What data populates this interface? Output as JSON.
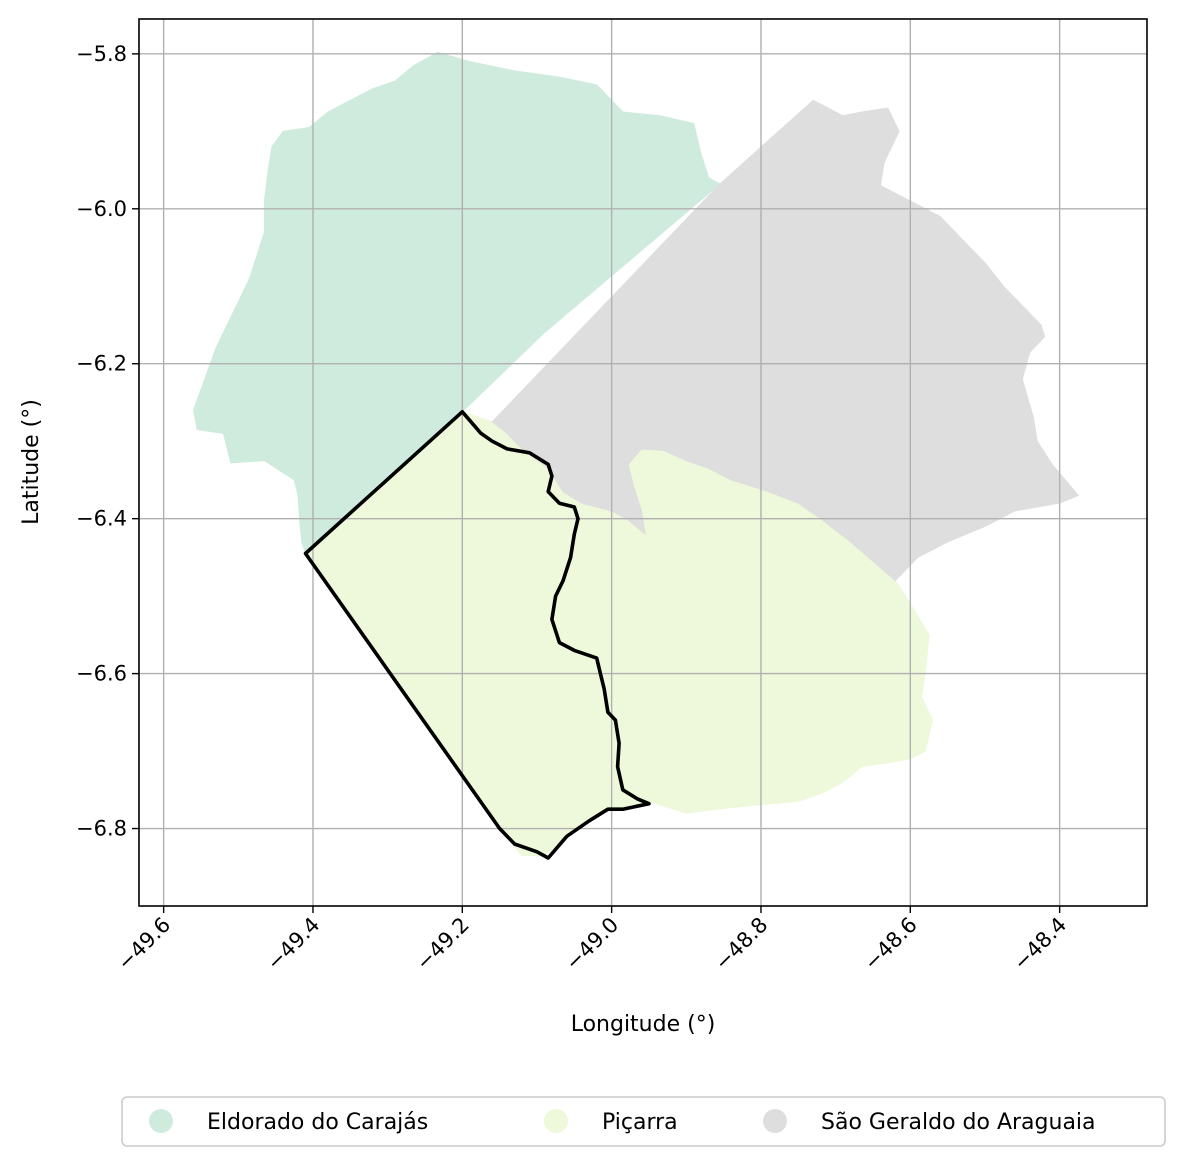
{
  "chart_data": {
    "type": "map",
    "title": "",
    "xlabel": "Longitude (°)",
    "ylabel": "Latitude (°)",
    "xlim": [
      -49.633,
      -48.283
    ],
    "ylim": [
      -6.9,
      -5.755
    ],
    "xticks": [
      -49.6,
      -49.4,
      -49.2,
      -49.0,
      -48.8,
      -48.6,
      -48.4
    ],
    "xtick_labels": [
      "−49.6",
      "−49.4",
      "−49.2",
      "−49.0",
      "−48.8",
      "−48.6",
      "−48.4"
    ],
    "yticks": [
      -5.8,
      -6.0,
      -6.2,
      -6.4,
      -6.6,
      -6.8
    ],
    "ytick_labels": [
      "−5.8",
      "−6.0",
      "−6.2",
      "−6.4",
      "−6.6",
      "−6.8"
    ],
    "grid": true,
    "legend_position": "bottom-center",
    "series": [
      {
        "name": "Eldorado do Carajás",
        "color": "#cfebde",
        "polygon": [
          [
            -49.233,
            -5.798
          ],
          [
            -49.19,
            -5.81
          ],
          [
            -49.13,
            -5.822
          ],
          [
            -49.07,
            -5.83
          ],
          [
            -49.02,
            -5.84
          ],
          [
            -48.985,
            -5.875
          ],
          [
            -48.935,
            -5.88
          ],
          [
            -48.89,
            -5.89
          ],
          [
            -48.88,
            -5.93
          ],
          [
            -48.87,
            -5.96
          ],
          [
            -48.855,
            -5.968
          ],
          [
            -49.09,
            -6.16
          ],
          [
            -49.2,
            -6.262
          ],
          [
            -49.41,
            -6.445
          ],
          [
            -49.415,
            -6.43
          ],
          [
            -49.418,
            -6.4
          ],
          [
            -49.42,
            -6.37
          ],
          [
            -49.425,
            -6.35
          ],
          [
            -49.465,
            -6.325
          ],
          [
            -49.51,
            -6.328
          ],
          [
            -49.52,
            -6.29
          ],
          [
            -49.555,
            -6.285
          ],
          [
            -49.56,
            -6.26
          ],
          [
            -49.545,
            -6.22
          ],
          [
            -49.53,
            -6.18
          ],
          [
            -49.515,
            -6.15
          ],
          [
            -49.5,
            -6.12
          ],
          [
            -49.485,
            -6.09
          ],
          [
            -49.475,
            -6.06
          ],
          [
            -49.465,
            -6.03
          ],
          [
            -49.465,
            -5.99
          ],
          [
            -49.46,
            -5.95
          ],
          [
            -49.455,
            -5.92
          ],
          [
            -49.44,
            -5.9
          ],
          [
            -49.405,
            -5.895
          ],
          [
            -49.38,
            -5.875
          ],
          [
            -49.35,
            -5.86
          ],
          [
            -49.32,
            -5.845
          ],
          [
            -49.29,
            -5.835
          ],
          [
            -49.265,
            -5.815
          ]
        ]
      },
      {
        "name": "Piçarra",
        "color": "#eef8da",
        "polygon": [
          [
            -49.2,
            -6.262
          ],
          [
            -49.16,
            -6.275
          ],
          [
            -49.14,
            -6.29
          ],
          [
            -49.12,
            -6.31
          ],
          [
            -49.085,
            -6.335
          ],
          [
            -49.065,
            -6.365
          ],
          [
            -49.04,
            -6.38
          ],
          [
            -49.0,
            -6.39
          ],
          [
            -48.98,
            -6.4
          ],
          [
            -48.955,
            -6.42
          ],
          [
            -48.96,
            -6.39
          ],
          [
            -48.97,
            -6.36
          ],
          [
            -48.978,
            -6.33
          ],
          [
            -48.96,
            -6.31
          ],
          [
            -48.93,
            -6.312
          ],
          [
            -48.9,
            -6.325
          ],
          [
            -48.87,
            -6.335
          ],
          [
            -48.84,
            -6.35
          ],
          [
            -48.79,
            -6.365
          ],
          [
            -48.75,
            -6.38
          ],
          [
            -48.72,
            -6.4
          ],
          [
            -48.68,
            -6.43
          ],
          [
            -48.65,
            -6.455
          ],
          [
            -48.62,
            -6.48
          ],
          [
            -48.6,
            -6.51
          ],
          [
            -48.575,
            -6.55
          ],
          [
            -48.58,
            -6.6
          ],
          [
            -48.585,
            -6.63
          ],
          [
            -48.57,
            -6.66
          ],
          [
            -48.58,
            -6.7
          ],
          [
            -48.6,
            -6.71
          ],
          [
            -48.63,
            -6.715
          ],
          [
            -48.665,
            -6.72
          ],
          [
            -48.69,
            -6.74
          ],
          [
            -48.72,
            -6.755
          ],
          [
            -48.75,
            -6.765
          ],
          [
            -48.81,
            -6.77
          ],
          [
            -48.86,
            -6.775
          ],
          [
            -48.9,
            -6.78
          ],
          [
            -48.95,
            -6.765
          ],
          [
            -48.975,
            -6.77
          ],
          [
            -49.0,
            -6.775
          ],
          [
            -49.03,
            -6.79
          ],
          [
            -49.06,
            -6.81
          ],
          [
            -49.09,
            -6.835
          ],
          [
            -49.12,
            -6.835
          ],
          [
            -49.15,
            -6.8
          ],
          [
            -49.41,
            -6.445
          ]
        ]
      },
      {
        "name": "São Geraldo do Araguaia",
        "color": "#dedede",
        "polygon": [
          [
            -48.855,
            -5.968
          ],
          [
            -48.73,
            -5.86
          ],
          [
            -48.69,
            -5.88
          ],
          [
            -48.665,
            -5.875
          ],
          [
            -48.63,
            -5.87
          ],
          [
            -48.615,
            -5.9
          ],
          [
            -48.635,
            -5.94
          ],
          [
            -48.64,
            -5.97
          ],
          [
            -48.6,
            -5.99
          ],
          [
            -48.56,
            -6.01
          ],
          [
            -48.53,
            -6.04
          ],
          [
            -48.5,
            -6.07
          ],
          [
            -48.475,
            -6.1
          ],
          [
            -48.445,
            -6.13
          ],
          [
            -48.425,
            -6.15
          ],
          [
            -48.42,
            -6.165
          ],
          [
            -48.44,
            -6.185
          ],
          [
            -48.45,
            -6.22
          ],
          [
            -48.435,
            -6.27
          ],
          [
            -48.43,
            -6.3
          ],
          [
            -48.41,
            -6.33
          ],
          [
            -48.375,
            -6.37
          ],
          [
            -48.4,
            -6.38
          ],
          [
            -48.46,
            -6.39
          ],
          [
            -48.5,
            -6.41
          ],
          [
            -48.55,
            -6.43
          ],
          [
            -48.59,
            -6.45
          ],
          [
            -48.62,
            -6.48
          ],
          [
            -48.65,
            -6.455
          ],
          [
            -48.68,
            -6.43
          ],
          [
            -48.72,
            -6.4
          ],
          [
            -48.75,
            -6.38
          ],
          [
            -48.79,
            -6.365
          ],
          [
            -48.84,
            -6.35
          ],
          [
            -48.87,
            -6.335
          ],
          [
            -48.9,
            -6.325
          ],
          [
            -48.93,
            -6.312
          ],
          [
            -48.96,
            -6.31
          ],
          [
            -48.978,
            -6.33
          ],
          [
            -48.97,
            -6.36
          ],
          [
            -48.96,
            -6.39
          ],
          [
            -48.955,
            -6.42
          ],
          [
            -48.98,
            -6.4
          ],
          [
            -49.0,
            -6.39
          ],
          [
            -49.04,
            -6.38
          ],
          [
            -49.065,
            -6.365
          ],
          [
            -49.085,
            -6.335
          ],
          [
            -49.12,
            -6.31
          ],
          [
            -49.14,
            -6.29
          ],
          [
            -49.16,
            -6.275
          ]
        ]
      }
    ],
    "outline": {
      "color": "#000000",
      "polygon": [
        [
          -49.2,
          -6.262
        ],
        [
          -49.175,
          -6.29
        ],
        [
          -49.16,
          -6.3
        ],
        [
          -49.14,
          -6.31
        ],
        [
          -49.11,
          -6.315
        ],
        [
          -49.085,
          -6.33
        ],
        [
          -49.08,
          -6.345
        ],
        [
          -49.085,
          -6.365
        ],
        [
          -49.07,
          -6.38
        ],
        [
          -49.05,
          -6.385
        ],
        [
          -49.045,
          -6.4
        ],
        [
          -49.05,
          -6.42
        ],
        [
          -49.055,
          -6.45
        ],
        [
          -49.065,
          -6.48
        ],
        [
          -49.075,
          -6.5
        ],
        [
          -49.08,
          -6.53
        ],
        [
          -49.07,
          -6.56
        ],
        [
          -49.05,
          -6.57
        ],
        [
          -49.02,
          -6.58
        ],
        [
          -49.015,
          -6.6
        ],
        [
          -49.01,
          -6.62
        ],
        [
          -49.005,
          -6.65
        ],
        [
          -48.995,
          -6.66
        ],
        [
          -48.99,
          -6.69
        ],
        [
          -48.992,
          -6.72
        ],
        [
          -48.985,
          -6.75
        ],
        [
          -48.965,
          -6.762
        ],
        [
          -48.95,
          -6.768
        ],
        [
          -48.985,
          -6.775
        ],
        [
          -49.005,
          -6.775
        ],
        [
          -49.03,
          -6.79
        ],
        [
          -49.06,
          -6.81
        ],
        [
          -49.085,
          -6.838
        ],
        [
          -49.1,
          -6.83
        ],
        [
          -49.13,
          -6.82
        ],
        [
          -49.15,
          -6.8
        ],
        [
          -49.41,
          -6.445
        ]
      ]
    }
  }
}
